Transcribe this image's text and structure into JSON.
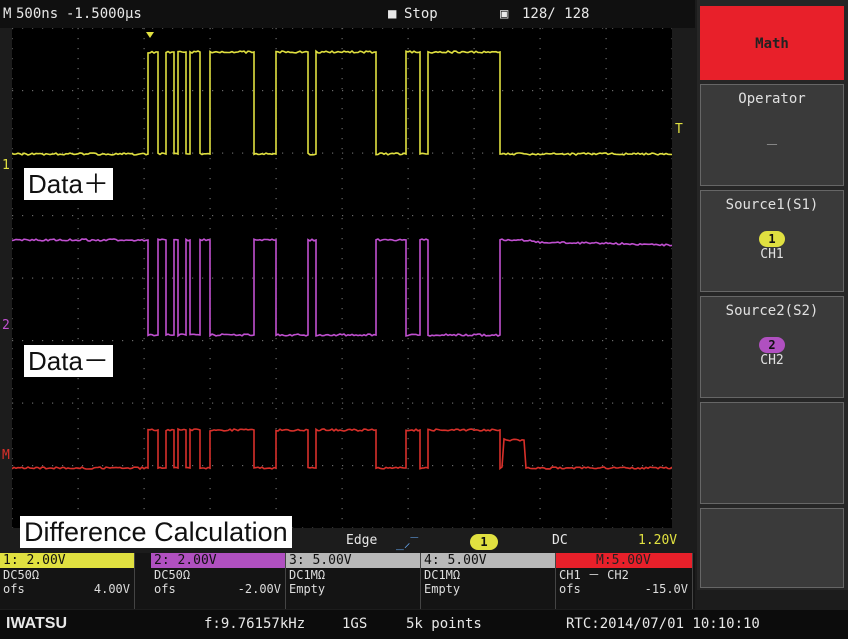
{
  "topbar": {
    "mode": "M",
    "timebase": "500ns",
    "delay": "-1.5000µs",
    "run_state": "Stop",
    "acq": "128/ 128"
  },
  "labels": {
    "data_plus": "Data＋",
    "data_minus": "Data－",
    "diff": "Difference Calculation"
  },
  "markers": {
    "ch1": "1",
    "ch2": "2",
    "math": "M",
    "trig": "T"
  },
  "menu": {
    "title": "Math",
    "operator_label": "Operator",
    "operator_value": "－",
    "source1_label": "Source1(S1)",
    "source1_num": "1",
    "source1_ch": "CH1",
    "source2_label": "Source2(S2)",
    "source2_num": "2",
    "source2_ch": "CH2"
  },
  "trigger": {
    "type": "Edge",
    "slope": "rising-edge-icon",
    "source": "1",
    "coupling": "DC",
    "level": "1.20V"
  },
  "channels": [
    {
      "head": "1: 2.00V",
      "line1": "DC50Ω",
      "line2_l": "ofs",
      "line2_r": "4.00V",
      "color": "#e0e040"
    },
    {
      "head": "2: 2.00V",
      "line1": "DC50Ω",
      "line2_l": "ofs",
      "line2_r": "-2.00V",
      "color": "#b050c0"
    },
    {
      "head": "3: 5.00V",
      "line1": "DC1MΩ",
      "line2_l": "Empty",
      "line2_r": "",
      "color": "#bbbbbb"
    },
    {
      "head": "4: 5.00V",
      "line1": "DC1MΩ",
      "line2_l": "Empty",
      "line2_r": "",
      "color": "#bbbbbb"
    },
    {
      "head": "M:5.00V",
      "line1": "CH1 － CH2",
      "line2_l": "ofs",
      "line2_r": "-15.0V",
      "color": "#e8202a"
    }
  ],
  "status": {
    "brand": "IWATSU",
    "freq": "f:9.76157kHz",
    "rate": "1GS",
    "points": "5k points",
    "rtc": "RTC:2014/07/01 10:10:10"
  },
  "colors": {
    "ch1": "#e0e040",
    "ch2": "#c050d0",
    "math": "#d8302a",
    "grid": "#555555"
  }
}
